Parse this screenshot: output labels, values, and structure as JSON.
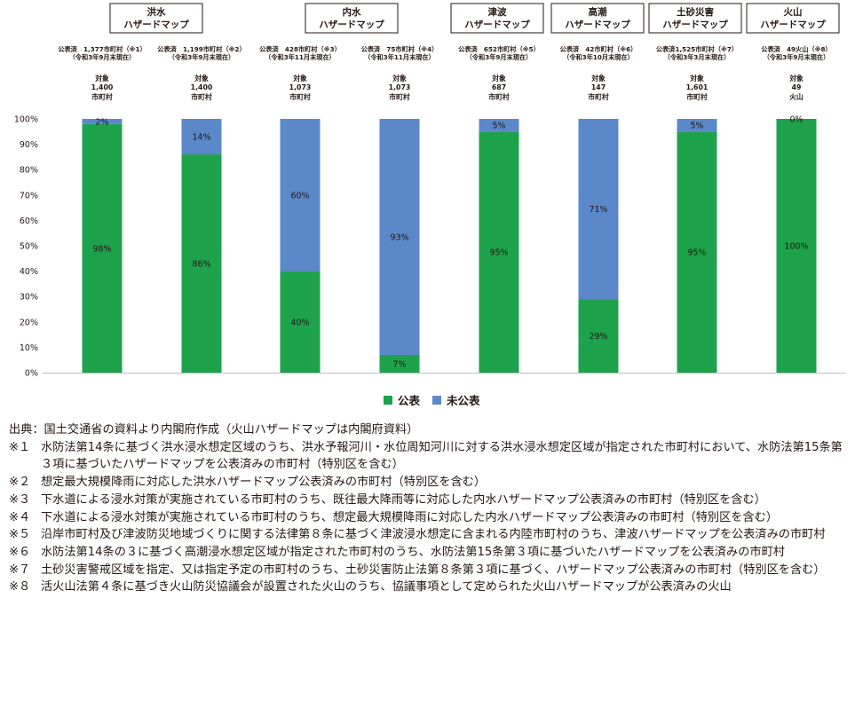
{
  "chart_data": {
    "type": "bar",
    "stacked": true,
    "percent": true,
    "columns": [
      {
        "group": 0,
        "note": [
          "公表済　1,377市町村（※1）",
          "（令和3年9月末現在）"
        ],
        "target": [
          "対象",
          "1,400",
          "市町村"
        ]
      },
      {
        "group": 0,
        "note": [
          "公表済　1,199市町村（※2）",
          "（令和3年9月末現在）"
        ],
        "target": [
          "対象",
          "1,400",
          "市町村"
        ]
      },
      {
        "group": 1,
        "note": [
          "公表済　428市町村（※3）",
          "（令和3年11月末現在）"
        ],
        "target": [
          "対象",
          "1,073",
          "市町村"
        ]
      },
      {
        "group": 1,
        "note": [
          "公表済　75市町村（※4）",
          "（令和3年11月末現在）"
        ],
        "target": [
          "対象",
          "1,073",
          "市町村"
        ]
      },
      {
        "group": 2,
        "note": [
          "公表済　652市町村（※5）",
          "（令和3年9月末現在）"
        ],
        "target": [
          "対象",
          "687",
          "市町村"
        ]
      },
      {
        "group": 3,
        "note": [
          "公表済　42市町村（※6）",
          "（令和3年10月末現在）"
        ],
        "target": [
          "対象",
          "147",
          "市町村"
        ]
      },
      {
        "group": 4,
        "note": [
          "公表済1,525市町村（※7）",
          "（令和3年3月末現在）"
        ],
        "target": [
          "対象",
          "1,601",
          "市町村"
        ]
      },
      {
        "group": 5,
        "note": [
          "公表済　49火山（※8）",
          "（令和3年9月末現在）"
        ],
        "target": [
          "対象",
          "49",
          "火山"
        ]
      }
    ],
    "groups": [
      {
        "title": [
          "洪水",
          "ハザードマップ"
        ]
      },
      {
        "title": [
          "内水",
          "ハザードマップ"
        ]
      },
      {
        "title": [
          "津波",
          "ハザードマップ"
        ]
      },
      {
        "title": [
          "高潮",
          "ハザードマップ"
        ]
      },
      {
        "title": [
          "土砂災害",
          "ハザードマップ"
        ]
      },
      {
        "title": [
          "火山",
          "ハザードマップ"
        ]
      }
    ],
    "series": [
      {
        "name": "公表",
        "color": "#1ea24b",
        "values": [
          98,
          86,
          40,
          7,
          95,
          29,
          95,
          100
        ],
        "labels": [
          "98%",
          "86%",
          "40%",
          "7%",
          "95%",
          "29%",
          "95%",
          "100%"
        ]
      },
      {
        "name": "未公表",
        "color": "#5b88c9",
        "values": [
          2,
          14,
          60,
          93,
          5,
          71,
          5,
          0
        ],
        "labels": [
          "2%",
          "14%",
          "60%",
          "93%",
          "5%",
          "71%",
          "5%",
          "0%"
        ]
      }
    ],
    "yticks": [
      "0%",
      "10%",
      "20%",
      "30%",
      "40%",
      "50%",
      "60%",
      "70%",
      "80%",
      "90%",
      "100%"
    ],
    "ylim": [
      0,
      100
    ],
    "legend_position": "bottom"
  },
  "footnotes": {
    "source": "出典：国土交通省の資料より内閣府作成（火山ハザードマップは内閣府資料）",
    "items": [
      {
        "mark": "※１",
        "text": "水防法第14条に基づく洪水浸水想定区域のうち、洪水予報河川・水位周知河川に対する洪水浸水想定区域が指定された市町村において、水防法第15条第３項に基づいたハザードマップを公表済みの市町村（特別区を含む）"
      },
      {
        "mark": "※２",
        "text": "想定最大規模降雨に対応した洪水ハザードマップ公表済みの市町村（特別区を含む）"
      },
      {
        "mark": "※３",
        "text": "下水道による浸水対策が実施されている市町村のうち、既往最大降雨等に対応した内水ハザードマップ公表済みの市町村（特別区を含む）"
      },
      {
        "mark": "※４",
        "text": "下水道による浸水対策が実施されている市町村のうち、想定最大規模降雨に対応した内水ハザードマップ公表済みの市町村（特別区を含む）"
      },
      {
        "mark": "※５",
        "text": "沿岸市町村及び津波防災地域づくりに関する法律第８条に基づく津波浸水想定に含まれる内陸市町村のうち、津波ハザードマップを公表済みの市町村"
      },
      {
        "mark": "※６",
        "text": "水防法第14条の３に基づく高潮浸水想定区域が指定された市町村のうち、水防法第15条第３項に基づいたハザードマップを公表済みの市町村"
      },
      {
        "mark": "※７",
        "text": "土砂災害警戒区域を指定、又は指定予定の市町村のうち、土砂災害防止法第８条第３項に基づく、ハザードマップ公表済みの市町村（特別区を含む）"
      },
      {
        "mark": "※８",
        "text": "活火山法第４条に基づき火山防災協議会が設置された火山のうち、協議事項として定められた火山ハザードマップが公表済みの火山"
      }
    ]
  }
}
